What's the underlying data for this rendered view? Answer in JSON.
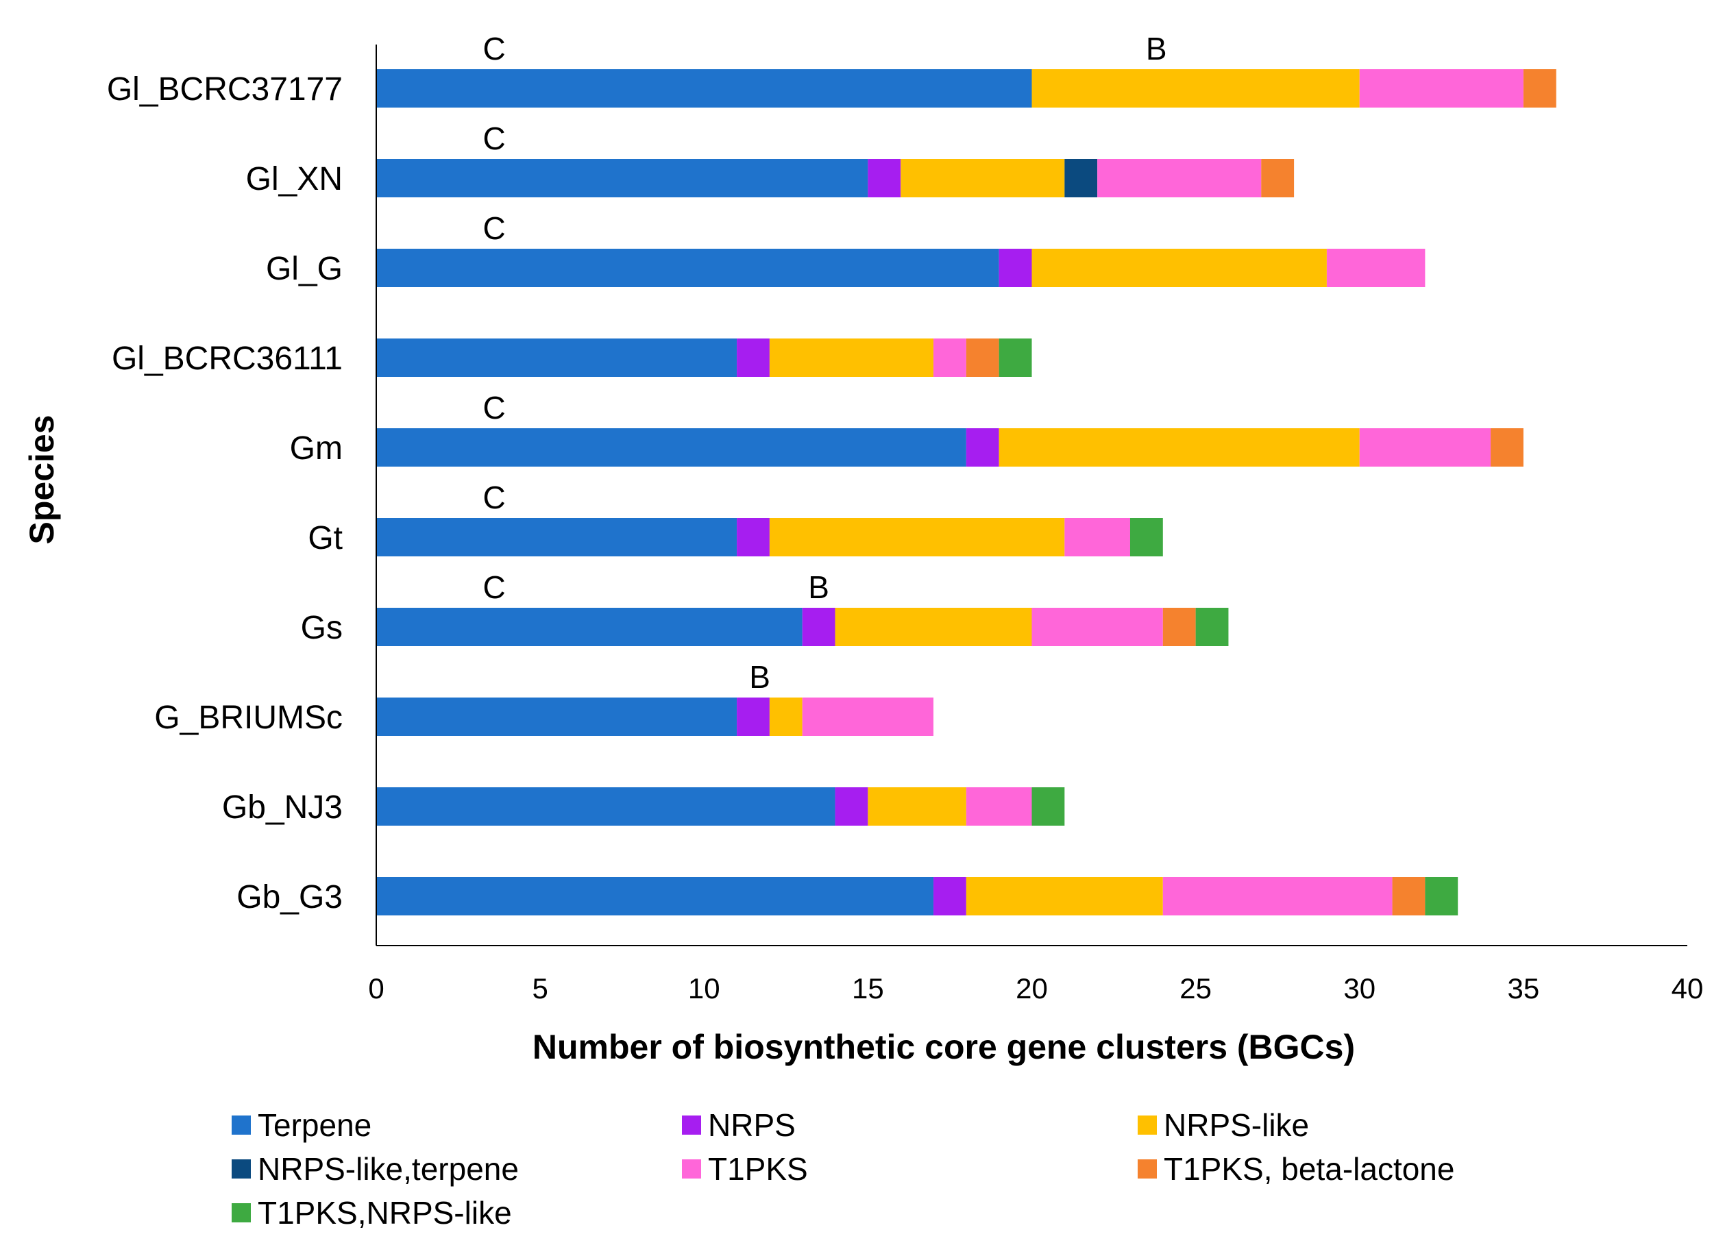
{
  "chart_data": {
    "type": "bar",
    "orientation": "horizontal",
    "stacked": true,
    "title": "",
    "xlabel": "Number of biosynthetic core gene clusters (BGCs)",
    "ylabel": "Species",
    "xlim": [
      0,
      40
    ],
    "xticks": [
      0,
      5,
      10,
      15,
      20,
      25,
      30,
      35,
      40
    ],
    "grid": false,
    "legend_position": "bottom",
    "categories": [
      "Gl_BCRC37177",
      "Gl_XN",
      "Gl_G",
      "Gl_BCRC36111",
      "Gm",
      "Gt",
      "Gs",
      "G_BRIUMSc",
      "Gb_NJ3",
      "Gb_G3"
    ],
    "series": [
      {
        "name": "Terpene",
        "color": "#1F73CC",
        "values": [
          20,
          15,
          19,
          11,
          18,
          11,
          13,
          11,
          14,
          17
        ]
      },
      {
        "name": "NRPS",
        "color": "#A61EF0",
        "values": [
          0,
          1,
          1,
          1,
          1,
          1,
          1,
          1,
          1,
          1
        ]
      },
      {
        "name": "NRPS-like",
        "color": "#FFC000",
        "values": [
          10,
          5,
          9,
          5,
          11,
          9,
          6,
          1,
          3,
          6
        ]
      },
      {
        "name": "NRPS-like,terpene",
        "color": "#0B4A7F",
        "values": [
          0,
          1,
          0,
          0,
          0,
          0,
          0,
          0,
          0,
          0
        ]
      },
      {
        "name": "T1PKS",
        "color": "#FF66D9",
        "values": [
          5,
          5,
          3,
          1,
          4,
          2,
          4,
          4,
          2,
          7
        ]
      },
      {
        "name": "T1PKS, beta-lactone",
        "color": "#F5822E",
        "values": [
          1,
          1,
          0,
          1,
          1,
          0,
          1,
          0,
          0,
          1
        ]
      },
      {
        "name": "T1PKS,NRPS-like",
        "color": "#3EAA41",
        "values": [
          0,
          0,
          0,
          1,
          0,
          1,
          1,
          0,
          1,
          1
        ]
      }
    ],
    "annotations": [
      {
        "category": "Gl_BCRC37177",
        "x": 3.6,
        "text": "C"
      },
      {
        "category": "Gl_BCRC37177",
        "x": 23.8,
        "text": "B"
      },
      {
        "category": "Gl_XN",
        "x": 3.6,
        "text": "C"
      },
      {
        "category": "Gl_G",
        "x": 3.6,
        "text": "C"
      },
      {
        "category": "Gm",
        "x": 3.6,
        "text": "C"
      },
      {
        "category": "Gt",
        "x": 3.6,
        "text": "C"
      },
      {
        "category": "Gs",
        "x": 3.6,
        "text": "C"
      },
      {
        "category": "Gs",
        "x": 13.5,
        "text": "B"
      },
      {
        "category": "G_BRIUMSc",
        "x": 11.7,
        "text": "B"
      }
    ]
  }
}
